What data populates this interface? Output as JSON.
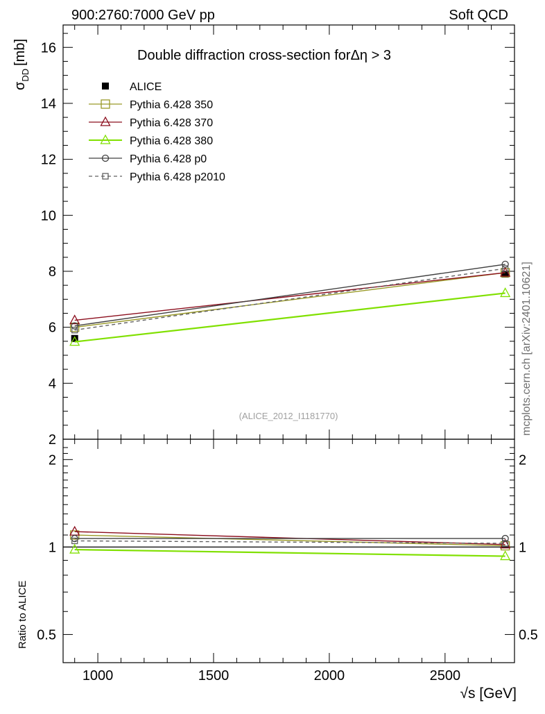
{
  "header": {
    "left": "900:2760:7000 GeV pp",
    "right": "Soft QCD"
  },
  "side_label": "mcplots.cern.ch [arXiv:2401.10621]",
  "chart_data": [
    {
      "type": "line",
      "title": "Double diffraction cross-section for",
      "title_math": "Δη > 3",
      "ylabel_main": "σ",
      "ylabel_sub": "DD",
      "ylabel_unit": "[mb]",
      "ylim": [
        2,
        16.8
      ],
      "yticks": [
        "2",
        "4",
        "6",
        "8",
        "10",
        "12",
        "14",
        "16"
      ],
      "yticks_values": [
        2,
        4,
        6,
        8,
        10,
        12,
        14,
        16
      ],
      "xlim": [
        850,
        2800
      ],
      "analysis_tag": "(ALICE_2012_I1181770)",
      "legend_position": "top-left",
      "x": [
        900,
        2760
      ],
      "series": [
        {
          "name": "ALICE",
          "marker": "filled-square",
          "color": "#000000",
          "values": [
            5.6,
            7.9
          ]
        },
        {
          "name": "Pythia 6.428 350",
          "marker": "open-square",
          "color": "#999926",
          "values": [
            6.0,
            7.95
          ]
        },
        {
          "name": "Pythia 6.428 370",
          "marker": "open-triangle",
          "color": "#8b0d1c",
          "values": [
            6.25,
            7.95
          ]
        },
        {
          "name": "Pythia 6.428 380",
          "marker": "open-triangle",
          "color": "#80e000",
          "values": [
            5.48,
            7.22
          ]
        },
        {
          "name": "Pythia 6.428 p0",
          "marker": "open-circle",
          "color": "#404040",
          "values": [
            6.05,
            8.25
          ]
        },
        {
          "name": "Pythia 6.428 p2010",
          "marker": "open-square-dashed",
          "color": "#606060",
          "values": [
            5.9,
            8.1
          ]
        }
      ]
    },
    {
      "type": "line",
      "ylabel": "Ratio to ALICE",
      "scale": "log",
      "ylim": [
        0.4,
        2.35
      ],
      "yticks": [
        "0.5",
        "1",
        "2"
      ],
      "yticks_values": [
        0.5,
        1,
        2
      ],
      "xlabel": "√s [GeV]",
      "xticks": [
        "1000",
        "1500",
        "2000",
        "2500"
      ],
      "xticks_values": [
        1000,
        1500,
        2000,
        2500
      ],
      "xlim": [
        850,
        2800
      ],
      "x": [
        900,
        2760
      ],
      "series": [
        {
          "name": "Pythia 6.428 350",
          "color": "#999926",
          "marker": "open-square",
          "values": [
            1.1,
            1.01
          ]
        },
        {
          "name": "Pythia 6.428 370",
          "color": "#8b0d1c",
          "marker": "open-triangle",
          "values": [
            1.13,
            1.02
          ]
        },
        {
          "name": "Pythia 6.428 380",
          "color": "#80e000",
          "marker": "open-triangle",
          "values": [
            0.98,
            0.93
          ]
        },
        {
          "name": "Pythia 6.428 p0",
          "color": "#404040",
          "marker": "open-circle",
          "values": [
            1.07,
            1.07
          ]
        },
        {
          "name": "Pythia 6.428 p2010",
          "color": "#606060",
          "marker": "open-square-dashed",
          "values": [
            1.05,
            1.03
          ]
        }
      ]
    }
  ]
}
